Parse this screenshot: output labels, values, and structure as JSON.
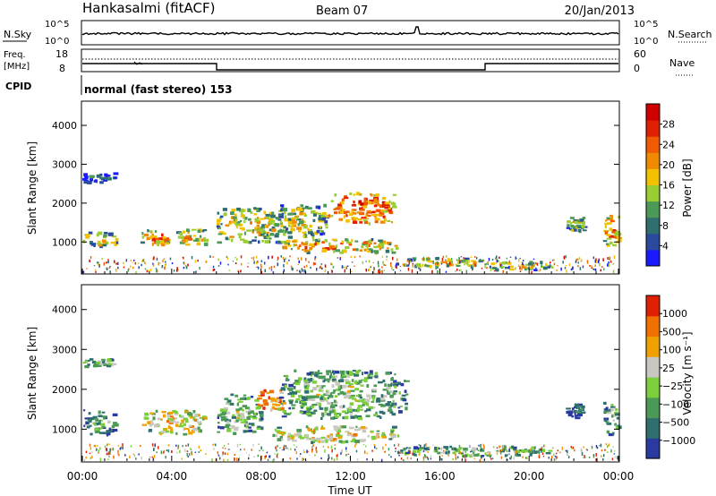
{
  "header": {
    "station": "Hankasalmi (fitACF)",
    "beam": "Beam 07",
    "date": "20/Jan/2013"
  },
  "aux_panels": {
    "nsky_label": "N.Sky",
    "nsky_ticks": [
      "10^5",
      "10^0"
    ],
    "nsearch_label": "N.Search",
    "freq_label_1": "Freq.",
    "freq_label_2": "[MHz]",
    "freq_ticks": [
      "18",
      "8"
    ],
    "nave_ticks": [
      "60",
      "0"
    ],
    "nave_label": "Nave",
    "cpid_label": "CPID",
    "cpid_text": "normal (fast stereo) 153"
  },
  "colors": {
    "power_scale": [
      "#1a1aff",
      "#2a4aa0",
      "#2f6f70",
      "#4a9a55",
      "#9acd32",
      "#f2c200",
      "#f08a00",
      "#f05a00",
      "#e02000",
      "#d00000"
    ],
    "velocity_scale": [
      "#2a3aa0",
      "#2f6f70",
      "#4a9a55",
      "#7ccf3a",
      "#c8c8c0",
      "#f0a000",
      "#f07000",
      "#e02000"
    ]
  },
  "chart_data": [
    {
      "type": "heatmap",
      "panel": "power",
      "ylabel": "Slant Range [km]",
      "yticks": [
        "4000",
        "3000",
        "2000",
        "1000"
      ],
      "ylim": [
        200,
        4600
      ],
      "xlim": [
        0,
        24
      ],
      "colorbar_label": "Power [dB]",
      "colorbar_ticks": [
        "28",
        "24",
        "20",
        "16",
        "12",
        "8",
        "4"
      ],
      "colorbar_range": [
        0,
        32
      ],
      "regions": [
        {
          "t0": 0.0,
          "t1": 1.5,
          "r0": 2550,
          "r1": 2800,
          "level": 0.2
        },
        {
          "t0": 0.0,
          "t1": 1.6,
          "r0": 900,
          "r1": 1300,
          "level": 0.5
        },
        {
          "t0": 2.6,
          "t1": 3.9,
          "r0": 950,
          "r1": 1350,
          "level": 0.7
        },
        {
          "t0": 4.1,
          "t1": 5.5,
          "r0": 950,
          "r1": 1350,
          "level": 0.6
        },
        {
          "t0": 6.0,
          "t1": 8.8,
          "r0": 1000,
          "r1": 1900,
          "level": 0.55
        },
        {
          "t0": 8.6,
          "t1": 11.0,
          "r0": 1150,
          "r1": 2000,
          "level": 0.5
        },
        {
          "t0": 11.0,
          "t1": 14.0,
          "r0": 1500,
          "r1": 2300,
          "level": 0.8
        },
        {
          "t0": 8.5,
          "t1": 14.2,
          "r0": 750,
          "r1": 1100,
          "level": 0.65
        },
        {
          "t0": 14.0,
          "t1": 18.0,
          "r0": 400,
          "r1": 620,
          "level": 0.55
        },
        {
          "t0": 18.0,
          "t1": 21.0,
          "r0": 300,
          "r1": 520,
          "level": 0.5
        },
        {
          "t0": 21.6,
          "t1": 22.4,
          "r0": 1300,
          "r1": 1650,
          "level": 0.5
        },
        {
          "t0": 23.3,
          "t1": 24.0,
          "r0": 900,
          "r1": 1700,
          "level": 0.7
        }
      ]
    },
    {
      "type": "heatmap",
      "panel": "velocity",
      "ylabel": "Slant Range [km]",
      "yticks": [
        "4000",
        "3000",
        "2000",
        "1000"
      ],
      "ylim": [
        200,
        4600
      ],
      "xlim": [
        0,
        24
      ],
      "xlabel": "Time UT",
      "xticks": [
        "00:00",
        "04:00",
        "08:00",
        "12:00",
        "16:00",
        "20:00",
        "00:00"
      ],
      "colorbar_label": "Velocity [m s⁻¹]",
      "colorbar_ticks": [
        "1000",
        "500",
        "100",
        "25",
        "−25",
        "−100",
        "−500",
        "−1000"
      ],
      "regions": [
        {
          "t0": 0.0,
          "t1": 1.5,
          "r0": 2550,
          "r1": 2800,
          "level": 0.45
        },
        {
          "t0": 0.0,
          "t1": 1.6,
          "r0": 900,
          "r1": 1500,
          "level": 0.35
        },
        {
          "t0": 2.6,
          "t1": 5.5,
          "r0": 900,
          "r1": 1500,
          "level": 0.65
        },
        {
          "t0": 6.0,
          "t1": 8.0,
          "r0": 900,
          "r1": 1900,
          "level": 0.45
        },
        {
          "t0": 7.8,
          "t1": 9.0,
          "r0": 1500,
          "r1": 2100,
          "level": 0.85
        },
        {
          "t0": 8.8,
          "t1": 14.5,
          "r0": 1300,
          "r1": 2500,
          "level": 0.45
        },
        {
          "t0": 8.5,
          "t1": 14.2,
          "r0": 700,
          "r1": 1100,
          "level": 0.65
        },
        {
          "t0": 14.0,
          "t1": 21.0,
          "r0": 350,
          "r1": 600,
          "level": 0.45
        },
        {
          "t0": 21.6,
          "t1": 22.4,
          "r0": 1300,
          "r1": 1650,
          "level": 0.25
        },
        {
          "t0": 23.3,
          "t1": 24.0,
          "r0": 900,
          "r1": 1700,
          "level": 0.45
        }
      ]
    }
  ]
}
